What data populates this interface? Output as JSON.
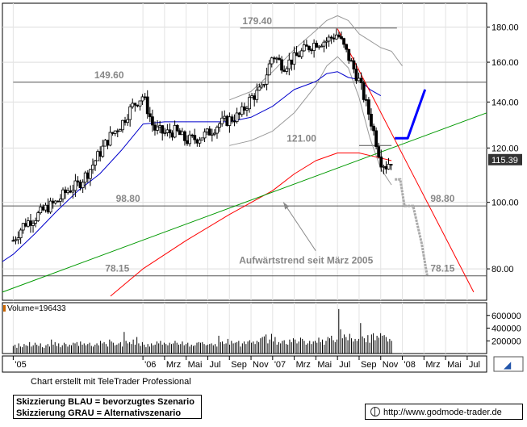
{
  "chart_data": [
    {
      "type": "candlestick",
      "x_tick_labels": [
        "'05",
        "'06",
        "Mrz",
        "Mai",
        "Jul",
        "Sep",
        "Nov",
        "'07",
        "Mrz",
        "Mai",
        "Jul",
        "Sep",
        "Nov",
        "'08",
        "Mrz",
        "Mai",
        "Jul"
      ],
      "x_tick_months": [
        0,
        12,
        14,
        16,
        18,
        20,
        22,
        24,
        26,
        28,
        30,
        32,
        34,
        36,
        38,
        40,
        42
      ],
      "x_range_months": [
        -1.0,
        43.8
      ],
      "y_scale": "log",
      "ylim": [
        72,
        195
      ],
      "y_ticks": [
        80,
        100,
        120,
        140,
        160,
        180
      ],
      "y_tick_labels": [
        "80.00",
        "100.00",
        "120.00",
        "140.00",
        "160.00",
        "180.00"
      ],
      "last_price": 115.39,
      "last_price_label": "115.39",
      "price_series": {
        "months": [
          0,
          1,
          2,
          3,
          4,
          5,
          6,
          7,
          8,
          9,
          10,
          11,
          12,
          13,
          14,
          15,
          16,
          17,
          18,
          19,
          20,
          21,
          22,
          23,
          24,
          25,
          26,
          27,
          28,
          29,
          30,
          31,
          32,
          33,
          33.5,
          34,
          34.5,
          35
        ],
        "close": [
          88,
          93,
          95,
          98,
          100,
          104,
          106,
          111,
          118,
          125,
          130,
          138,
          143,
          128,
          126,
          127,
          123,
          124,
          126,
          130,
          132,
          134,
          142,
          146,
          164,
          158,
          162,
          167,
          171,
          172,
          176,
          163,
          150,
          133,
          124,
          115,
          113,
          115.39
        ]
      },
      "horizontal_levels": [
        {
          "label": "179.40",
          "value": 179.4,
          "label_month": 21.2,
          "from_month": 21.0,
          "to_month": 35.5
        },
        {
          "label": "149.60",
          "value": 149.6,
          "label_month": 7.5,
          "from_month": 0,
          "to_month": 43.8
        },
        {
          "label": "121.00",
          "value": 121.0,
          "label_month": 25.3,
          "from_month": 32.0,
          "to_month": 35.0
        },
        {
          "label": "98.80",
          "value": 98.8,
          "label_month": 9.5,
          "from_month": -1,
          "to_month": 43.8
        },
        {
          "label": "98.80",
          "value": 98.8,
          "label_month": 38.6,
          "from_month": null,
          "to_month": null
        },
        {
          "label": "78.15",
          "value": 78.15,
          "label_month": 8.5,
          "from_month": -1,
          "to_month": 43.8
        },
        {
          "label": "78.15",
          "value": 78.15,
          "label_month": 38.6,
          "from_month": null,
          "to_month": null
        }
      ],
      "trendlines": [
        {
          "name": "Aufwärtstrend seit März 2005",
          "color": "#009900",
          "points": [
            [
              -1,
              74
            ],
            [
              43.8,
              135
            ]
          ]
        },
        {
          "name": "Abwärtstrend",
          "color": "#ff0000",
          "points": [
            [
              30,
              179
            ],
            [
              42.6,
              74
            ]
          ]
        }
      ],
      "moving_averages": [
        {
          "color": "#0000cc",
          "months": [
            -1,
            0,
            2,
            4,
            6,
            8,
            10,
            12,
            14,
            16,
            18,
            20,
            22,
            24,
            26,
            28,
            29,
            30,
            31,
            32,
            33,
            34
          ],
          "values": [
            82,
            84,
            90,
            97,
            104,
            110,
            119,
            130,
            131,
            131,
            131,
            131,
            133,
            138,
            146,
            150,
            154,
            155,
            152,
            151,
            146,
            143
          ]
        },
        {
          "color": "#ff0000",
          "months": [
            9,
            12,
            16,
            20,
            24,
            26,
            28,
            30,
            31,
            32,
            33,
            34,
            35
          ],
          "values": [
            73,
            80,
            88,
            96,
            104,
            110,
            115,
            118,
            118,
            118,
            117,
            116,
            115
          ]
        }
      ],
      "bollinger_bands": [
        {
          "color": "#999999",
          "months": [
            20,
            22,
            24,
            26,
            28,
            29,
            30,
            31,
            32,
            33,
            34,
            35,
            36
          ],
          "values": [
            141,
            145,
            155,
            167,
            178,
            184,
            187,
            184,
            176,
            172,
            168,
            166,
            158
          ]
        },
        {
          "color": "#999999",
          "months": [
            20,
            22,
            24,
            26,
            28,
            29,
            30,
            31,
            32,
            33,
            34,
            35
          ],
          "values": [
            121,
            123,
            127,
            135,
            148,
            158,
            163,
            157,
            142,
            124,
            112,
            106
          ]
        }
      ],
      "scenario_blue": {
        "color": "#0000ff",
        "months": [
          35.3,
          36.5,
          38.1
        ],
        "values": [
          124,
          124,
          146
        ]
      },
      "scenario_gray": {
        "color": "#aaaaaa",
        "months": [
          35.3,
          35.8,
          36.2,
          37.0,
          37.8,
          38.3
        ],
        "values": [
          108,
          108,
          98.8,
          98.8,
          87,
          78.2
        ]
      },
      "annotation": {
        "text": "Aufwärtstrend seit März 2005",
        "arrow_to_month": 25.0,
        "arrow_to_value": 100.0
      }
    },
    {
      "type": "bar",
      "series_name": "Volume",
      "volume_label": "Volume=196433",
      "y_ticks": [
        200000,
        400000,
        600000
      ],
      "y_tick_labels": [
        "200000",
        "400000",
        "600000"
      ],
      "ylim": [
        0,
        800000
      ],
      "values": [
        120000,
        140000,
        90000,
        160000,
        110000,
        100000,
        150000,
        130000,
        120000,
        180000,
        110000,
        130000,
        170000,
        140000,
        120000,
        160000,
        100000,
        90000,
        130000,
        150000,
        110000,
        220000,
        140000,
        180000,
        120000,
        160000,
        100000,
        130000,
        170000,
        150000,
        110000,
        140000,
        130000,
        170000,
        160000,
        180000,
        120000,
        190000,
        140000,
        160000,
        130000,
        150000,
        170000,
        120000,
        110000,
        140000,
        160000,
        130000,
        200000,
        160000,
        180000,
        150000,
        110000,
        220000,
        190000,
        170000,
        130000,
        140000,
        160000,
        180000,
        110000,
        340000,
        200000,
        160000,
        180000,
        150000,
        220000,
        140000,
        260000,
        160000,
        120000,
        180000,
        140000,
        100000,
        150000,
        110000,
        160000,
        130000,
        140000,
        190000,
        160000,
        200000,
        140000,
        170000,
        150000,
        130000,
        170000,
        150000,
        160000,
        200000,
        170000,
        140000,
        150000,
        190000,
        130000,
        150000,
        170000,
        110000,
        140000,
        120000,
        130000,
        170000,
        180000,
        170000,
        180000,
        150000,
        130000,
        140000,
        150000,
        160000,
        130000,
        150000,
        110000,
        280000,
        180000,
        190000,
        150000,
        160000,
        230000,
        140000,
        200000,
        160000,
        170000,
        180000,
        200000,
        110000,
        160000,
        190000,
        150000,
        190000,
        210000,
        170000,
        190000,
        150000,
        200000,
        180000,
        240000,
        260000,
        270000,
        300000,
        160000,
        220000,
        310000,
        190000,
        260000,
        140000,
        180000,
        160000,
        200000,
        210000,
        150000,
        140000,
        220000,
        180000,
        240000,
        220000,
        160000,
        190000,
        250000,
        230000,
        200000,
        140000,
        160000,
        200000,
        150000,
        190000,
        200000,
        170000,
        250000,
        180000,
        220000,
        140000,
        200000,
        260000,
        240000,
        280000,
        210000,
        180000,
        220000,
        700000,
        380000,
        240000,
        300000,
        260000,
        210000,
        310000,
        240000,
        190000,
        230000,
        200000,
        230000,
        480000,
        270000,
        240000,
        180000,
        290000,
        170000,
        300000,
        320000,
        210000,
        280000,
        250000,
        320000,
        280000,
        290000,
        260000,
        190000,
        230000,
        200000
      ]
    }
  ],
  "footer": {
    "credit": "Chart erstellt mit TeleTrader Professional",
    "legend_line1": "Skizzierung BLAU = bevorzugtes Szenario",
    "legend_line2": "Skizzierung GRAU = Alternativszenario",
    "url": "http://www.godmode-trader.de"
  }
}
